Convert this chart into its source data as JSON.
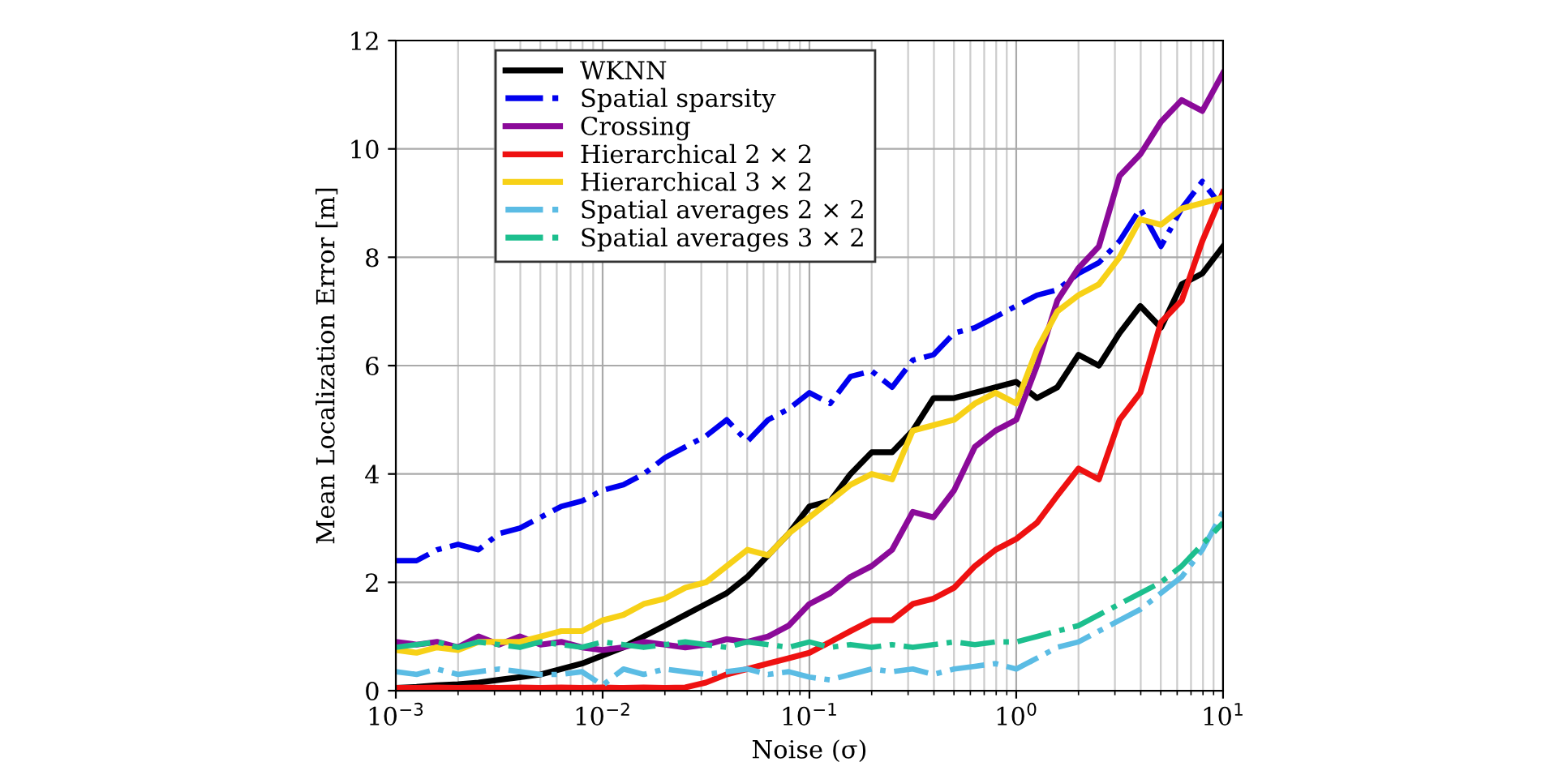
{
  "chart_data": {
    "type": "line",
    "xlabel": "Noise (σ)",
    "ylabel": "Mean Localization Error [m]",
    "log": "x",
    "grid": true,
    "legend": "top",
    "marker": "none",
    "xlim": [
      0.001,
      10
    ],
    "ylim": [
      0,
      12
    ],
    "xticks": [
      {
        "value": 0.001,
        "label": "10$^{−3}$"
      },
      {
        "value": 0.01,
        "label": "10$^{−2}$"
      },
      {
        "value": 0.1,
        "label": "10$^{−1}$"
      },
      {
        "value": 1,
        "label": "10$^{0}$"
      },
      {
        "value": 10,
        "label": "10$^{1}$"
      }
    ],
    "yticks": [
      0,
      2,
      4,
      6,
      8,
      10,
      12
    ],
    "x": [
      0.001,
      0.00126,
      0.00158,
      0.002,
      0.00251,
      0.00316,
      0.00398,
      0.00501,
      0.00631,
      0.00794,
      0.01,
      0.0126,
      0.0158,
      0.02,
      0.0251,
      0.0316,
      0.0398,
      0.0501,
      0.0631,
      0.0794,
      0.1,
      0.126,
      0.158,
      0.2,
      0.251,
      0.316,
      0.398,
      0.501,
      0.631,
      0.794,
      1,
      1.26,
      1.58,
      2,
      2.51,
      3.16,
      3.98,
      5.01,
      6.31,
      7.94,
      10
    ],
    "series": [
      {
        "name": "WKNN",
        "color": "#000000",
        "line_style": "solid",
        "values": [
          0.05,
          0.07,
          0.1,
          0.12,
          0.15,
          0.2,
          0.25,
          0.3,
          0.4,
          0.5,
          0.65,
          0.8,
          1.0,
          1.2,
          1.4,
          1.6,
          1.8,
          2.1,
          2.5,
          2.9,
          3.4,
          3.5,
          4.0,
          4.4,
          4.4,
          4.8,
          5.4,
          5.4,
          5.5,
          5.6,
          5.7,
          5.4,
          5.6,
          6.2,
          6.0,
          6.6,
          7.1,
          6.7,
          7.5,
          7.7,
          8.2
        ]
      },
      {
        "name": "Spatial sparsity",
        "color": "#0000ee",
        "line_style": "dashdot",
        "values": [
          2.4,
          2.4,
          2.6,
          2.7,
          2.6,
          2.9,
          3.0,
          3.2,
          3.4,
          3.5,
          3.7,
          3.8,
          4.0,
          4.3,
          4.5,
          4.7,
          5.0,
          4.6,
          5.0,
          5.2,
          5.5,
          5.3,
          5.8,
          5.9,
          5.6,
          6.1,
          6.2,
          6.6,
          6.7,
          6.9,
          7.1,
          7.3,
          7.4,
          7.7,
          7.9,
          8.3,
          8.9,
          8.2,
          8.9,
          9.4,
          8.9
        ]
      },
      {
        "name": "Crossing",
        "color": "#8b0a99",
        "line_style": "solid",
        "values": [
          0.9,
          0.85,
          0.9,
          0.8,
          1.0,
          0.85,
          1.0,
          0.85,
          0.9,
          0.8,
          0.75,
          0.8,
          0.9,
          0.85,
          0.8,
          0.85,
          0.95,
          0.9,
          1.0,
          1.2,
          1.6,
          1.8,
          2.1,
          2.3,
          2.6,
          3.3,
          3.2,
          3.7,
          4.5,
          4.8,
          5.0,
          6.0,
          7.2,
          7.8,
          8.2,
          9.5,
          9.9,
          10.5,
          10.9,
          10.7,
          11.4
        ]
      },
      {
        "name": "Hierarchical 2 × 2",
        "color": "#ee1111",
        "line_style": "solid",
        "values": [
          0.05,
          0.05,
          0.06,
          0.05,
          0.06,
          0.05,
          0.06,
          0.05,
          0.06,
          0.05,
          0.06,
          0.05,
          0.06,
          0.05,
          0.06,
          0.15,
          0.3,
          0.4,
          0.5,
          0.6,
          0.7,
          0.9,
          1.1,
          1.3,
          1.3,
          1.6,
          1.7,
          1.9,
          2.3,
          2.6,
          2.8,
          3.1,
          3.6,
          4.1,
          3.9,
          5.0,
          5.5,
          6.8,
          7.2,
          8.3,
          9.2
        ]
      },
      {
        "name": "Hierarchical 3 × 2",
        "color": "#f7d117",
        "line_style": "solid",
        "values": [
          0.75,
          0.7,
          0.8,
          0.75,
          0.9,
          0.9,
          0.9,
          1.0,
          1.1,
          1.1,
          1.3,
          1.4,
          1.6,
          1.7,
          1.9,
          2.0,
          2.3,
          2.6,
          2.5,
          2.9,
          3.2,
          3.5,
          3.8,
          4.0,
          3.9,
          4.8,
          4.9,
          5.0,
          5.3,
          5.5,
          5.3,
          6.3,
          7.0,
          7.3,
          7.5,
          8.0,
          8.7,
          8.6,
          8.9,
          9.0,
          9.1
        ]
      },
      {
        "name": "Spatial averages 2 × 2",
        "color": "#5bbce4",
        "line_style": "dashdot",
        "values": [
          0.35,
          0.3,
          0.4,
          0.3,
          0.35,
          0.4,
          0.35,
          0.3,
          0.3,
          0.35,
          0.1,
          0.4,
          0.3,
          0.4,
          0.35,
          0.3,
          0.35,
          0.4,
          0.3,
          0.35,
          0.25,
          0.2,
          0.3,
          0.4,
          0.35,
          0.4,
          0.3,
          0.4,
          0.45,
          0.5,
          0.4,
          0.6,
          0.8,
          0.9,
          1.1,
          1.3,
          1.5,
          1.8,
          2.1,
          2.6,
          3.3
        ]
      },
      {
        "name": "Spatial averages 3 × 2",
        "color": "#1dbf8e",
        "line_style": "dashdot",
        "values": [
          0.8,
          0.85,
          0.9,
          0.8,
          0.9,
          0.85,
          0.8,
          0.9,
          0.85,
          0.8,
          0.9,
          0.85,
          0.8,
          0.85,
          0.9,
          0.85,
          0.8,
          0.9,
          0.85,
          0.8,
          0.9,
          0.8,
          0.85,
          0.8,
          0.85,
          0.8,
          0.85,
          0.9,
          0.85,
          0.9,
          0.9,
          1.0,
          1.1,
          1.2,
          1.4,
          1.6,
          1.8,
          2.0,
          2.3,
          2.7,
          3.1
        ]
      }
    ]
  }
}
